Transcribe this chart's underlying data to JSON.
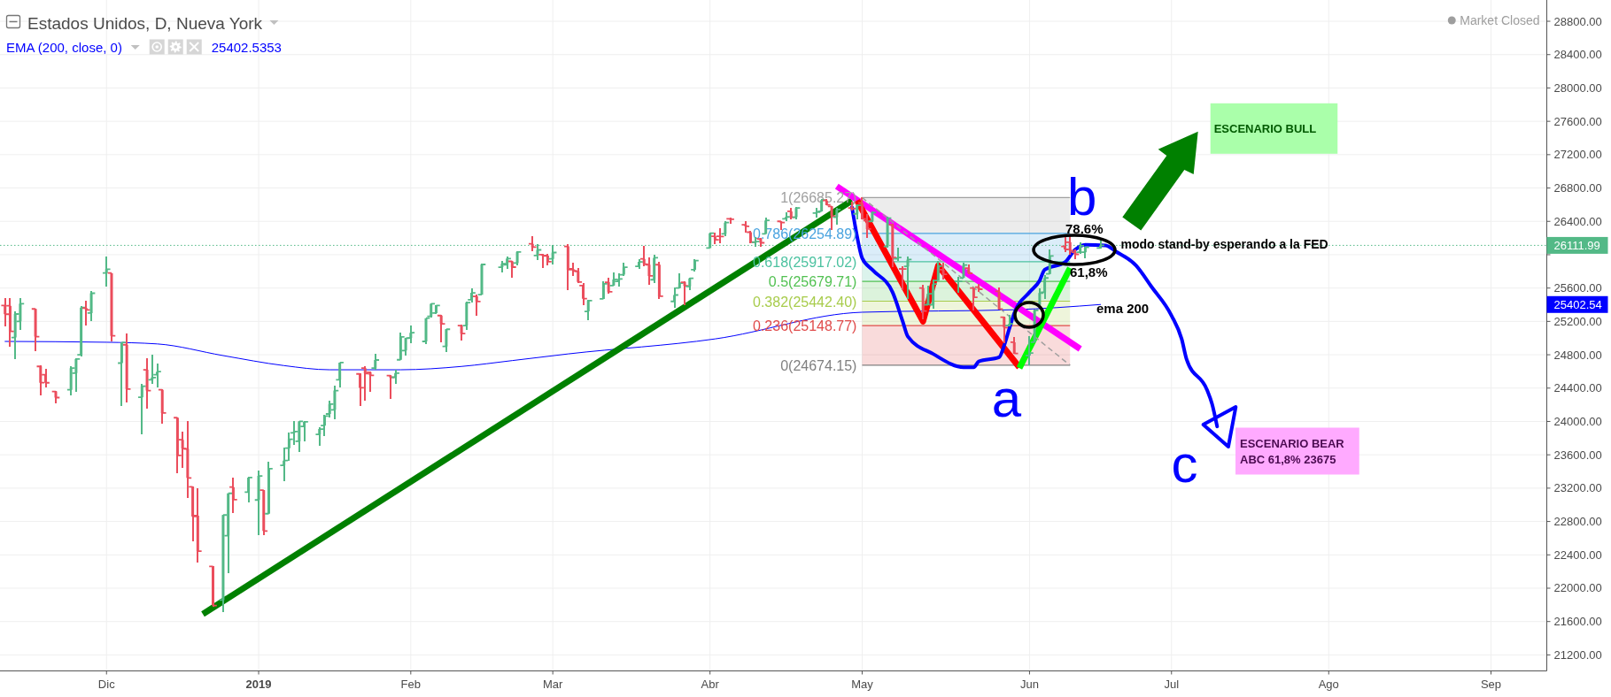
{
  "chart_data": {
    "type": "candlestick",
    "title": "Estados Unidos, D, Nueva York",
    "x": [
      "2018-11-13",
      "2018-11-14",
      "2018-11-15",
      "2018-11-16",
      "2018-11-19",
      "2018-11-20",
      "2018-11-21",
      "2018-11-23",
      "2018-11-26",
      "2018-11-27",
      "2018-11-28",
      "2018-11-29",
      "2018-11-30",
      "2018-12-03",
      "2018-12-04",
      "2018-12-06",
      "2018-12-07",
      "2018-12-10",
      "2018-12-11",
      "2018-12-12",
      "2018-12-13",
      "2018-12-14",
      "2018-12-17",
      "2018-12-18",
      "2018-12-19",
      "2018-12-20",
      "2018-12-21",
      "2018-12-24",
      "2018-12-26",
      "2018-12-27",
      "2018-12-28",
      "2018-12-31",
      "2019-01-02",
      "2019-01-03",
      "2019-01-04",
      "2019-01-07",
      "2019-01-08",
      "2019-01-09",
      "2019-01-10",
      "2019-01-11",
      "2019-01-14",
      "2019-01-15",
      "2019-01-16",
      "2019-01-17",
      "2019-01-18",
      "2019-01-22",
      "2019-01-23",
      "2019-01-24",
      "2019-01-25",
      "2019-01-28",
      "2019-01-29",
      "2019-01-30",
      "2019-01-31",
      "2019-02-01",
      "2019-02-04",
      "2019-02-05",
      "2019-02-06",
      "2019-02-07",
      "2019-02-08",
      "2019-02-11",
      "2019-02-12",
      "2019-02-13",
      "2019-02-14",
      "2019-02-15",
      "2019-02-19",
      "2019-02-20",
      "2019-02-21",
      "2019-02-22",
      "2019-02-25",
      "2019-02-26",
      "2019-02-27",
      "2019-02-28",
      "2019-03-01",
      "2019-03-04",
      "2019-03-05",
      "2019-03-06",
      "2019-03-07",
      "2019-03-08",
      "2019-03-11",
      "2019-03-12",
      "2019-03-13",
      "2019-03-14",
      "2019-03-15",
      "2019-03-18",
      "2019-03-19",
      "2019-03-20",
      "2019-03-21",
      "2019-03-22",
      "2019-03-25",
      "2019-03-26",
      "2019-03-27",
      "2019-03-28",
      "2019-03-29",
      "2019-04-01",
      "2019-04-02",
      "2019-04-03",
      "2019-04-04",
      "2019-04-05",
      "2019-04-08",
      "2019-04-09",
      "2019-04-10",
      "2019-04-11",
      "2019-04-12",
      "2019-04-15",
      "2019-04-16",
      "2019-04-17",
      "2019-04-18",
      "2019-04-22",
      "2019-04-23",
      "2019-04-24",
      "2019-04-25",
      "2019-04-26",
      "2019-04-29",
      "2019-04-30",
      "2019-05-01",
      "2019-05-02",
      "2019-05-03",
      "2019-05-06",
      "2019-05-07",
      "2019-05-08",
      "2019-05-09",
      "2019-05-10",
      "2019-05-13",
      "2019-05-14",
      "2019-05-15",
      "2019-05-16",
      "2019-05-17",
      "2019-05-20",
      "2019-05-21",
      "2019-05-22",
      "2019-05-23",
      "2019-05-24",
      "2019-05-28",
      "2019-05-29",
      "2019-05-30",
      "2019-05-31",
      "2019-06-03",
      "2019-06-04",
      "2019-06-05",
      "2019-06-06",
      "2019-06-07",
      "2019-06-10",
      "2019-06-11",
      "2019-06-12",
      "2019-06-13",
      "2019-06-14",
      "2019-06-17"
    ],
    "ohlc": [
      [
        25390,
        25475,
        25140,
        25286
      ],
      [
        25388,
        25475,
        24894,
        25080
      ],
      [
        25007,
        25318,
        24750,
        25289
      ],
      [
        25200,
        25475,
        25093,
        25413
      ],
      [
        25350,
        25352,
        24839,
        25017
      ],
      [
        24660,
        24670,
        24308,
        24465
      ],
      [
        24560,
        24626,
        24405,
        24464
      ],
      [
        24360,
        24363,
        24214,
        24286
      ],
      [
        24380,
        24660,
        24308,
        24640
      ],
      [
        24580,
        24760,
        24350,
        24748
      ],
      [
        24800,
        25380,
        24779,
        25366
      ],
      [
        25360,
        25446,
        25148,
        25338
      ],
      [
        25300,
        25560,
        25199,
        25538
      ],
      [
        25780,
        25980,
        25616,
        25826
      ],
      [
        25780,
        25780,
        24957,
        25027
      ],
      [
        24700,
        24950,
        24185,
        24947
      ],
      [
        24920,
        25055,
        24223,
        24389
      ],
      [
        24290,
        24450,
        23850,
        24423
      ],
      [
        24620,
        24754,
        24150,
        24370
      ],
      [
        24500,
        24796,
        24448,
        24527
      ],
      [
        24560,
        24694,
        24405,
        24597
      ],
      [
        24380,
        24384,
        23968,
        24101
      ],
      [
        24045,
        24045,
        23374,
        23593
      ],
      [
        23780,
        23883,
        23442,
        23675
      ],
      [
        23670,
        24010,
        23081,
        23323
      ],
      [
        23217,
        23217,
        22558,
        22860
      ],
      [
        22870,
        23195,
        22312,
        22445
      ],
      [
        22261,
        22261,
        21780,
        21792
      ],
      [
        21857,
        22878,
        21712,
        22878
      ],
      [
        22630,
        23138,
        22185,
        23138
      ],
      [
        23213,
        23322,
        22898,
        23062
      ],
      [
        23153,
        23333,
        23034,
        23327
      ],
      [
        23058,
        23413,
        22638,
        23346
      ],
      [
        23176,
        23176,
        22638,
        22686
      ],
      [
        22894,
        23518,
        22894,
        23433
      ],
      [
        23474,
        23687,
        23287,
        23531
      ],
      [
        23680,
        23865,
        23529,
        23787
      ],
      [
        23864,
        24001,
        23720,
        23879
      ],
      [
        23762,
        24002,
        23637,
        24001
      ],
      [
        23940,
        24005,
        23760,
        23996
      ],
      [
        23845,
        23936,
        23712,
        23909
      ],
      [
        23950,
        24080,
        23820,
        24065
      ],
      [
        24090,
        24250,
        24050,
        24207
      ],
      [
        24140,
        24430,
        24030,
        24370
      ],
      [
        24500,
        24710,
        24410,
        24706
      ],
      [
        24570,
        24580,
        24190,
        24404
      ],
      [
        24640,
        24660,
        24244,
        24575
      ],
      [
        24590,
        24596,
        24350,
        24553
      ],
      [
        24640,
        24810,
        24620,
        24737
      ],
      [
        24550,
        24554,
        24265,
        24528
      ],
      [
        24530,
        24618,
        24448,
        24580
      ],
      [
        24740,
        25064,
        24732,
        25014
      ],
      [
        24850,
        25000,
        24788,
        24999
      ],
      [
        25000,
        25149,
        24936,
        25064
      ],
      [
        24960,
        25240,
        24923,
        25239
      ],
      [
        25260,
        25420,
        25246,
        25412
      ],
      [
        25300,
        25391,
        25284,
        25390
      ],
      [
        25270,
        25276,
        24945,
        25170
      ],
      [
        24900,
        25110,
        24830,
        25106
      ],
      [
        25150,
        25157,
        24966,
        25053
      ],
      [
        25150,
        25440,
        25098,
        25426
      ],
      [
        25460,
        25594,
        25425,
        25543
      ],
      [
        25500,
        25518,
        25263,
        25439
      ],
      [
        25520,
        25890,
        25518,
        25883
      ],
      [
        25850,
        25921,
        25785,
        25891
      ],
      [
        25880,
        25980,
        25828,
        25954
      ],
      [
        25920,
        25921,
        25722,
        25851
      ],
      [
        25900,
        26040,
        25870,
        26032
      ],
      [
        26130,
        26219,
        26040,
        26092
      ],
      [
        25990,
        26125,
        25934,
        26058
      ],
      [
        26000,
        26006,
        25836,
        25985
      ],
      [
        25990,
        26006,
        25870,
        25916
      ],
      [
        25950,
        26117,
        25879,
        26026
      ],
      [
        26100,
        26125,
        25573,
        25820
      ],
      [
        25830,
        25900,
        25750,
        25807
      ],
      [
        25800,
        25840,
        25660,
        25673
      ],
      [
        25630,
        25660,
        25390,
        25473
      ],
      [
        25320,
        25460,
        25210,
        25450
      ],
      [
        25470,
        25680,
        25470,
        25651
      ],
      [
        25670,
        25720,
        25530,
        25555
      ],
      [
        25630,
        25790,
        25630,
        25703
      ],
      [
        25680,
        25780,
        25620,
        25710
      ],
      [
        25760,
        25900,
        25750,
        25849
      ],
      [
        25860,
        25950,
        25830,
        25914
      ],
      [
        25950,
        26110,
        25860,
        25887
      ],
      [
        25880,
        25970,
        25640,
        25746
      ],
      [
        25700,
        26000,
        25660,
        25963
      ],
      [
        25880,
        25920,
        25470,
        25502
      ],
      [
        25440,
        25610,
        25360,
        25517
      ],
      [
        25600,
        25780,
        25600,
        25658
      ],
      [
        25670,
        25680,
        25400,
        25626
      ],
      [
        25620,
        25720,
        25570,
        25717
      ],
      [
        25820,
        25950,
        25800,
        25929
      ],
      [
        26080,
        26260,
        26080,
        26258
      ],
      [
        26220,
        26260,
        26130,
        26179
      ],
      [
        26220,
        26320,
        26140,
        26218
      ],
      [
        26250,
        26400,
        26220,
        26385
      ],
      [
        26430,
        26450,
        26370,
        26425
      ],
      [
        26360,
        26400,
        26260,
        26341
      ],
      [
        26270,
        26290,
        26140,
        26151
      ],
      [
        26150,
        26210,
        26100,
        26157
      ],
      [
        26190,
        26200,
        26100,
        26143
      ],
      [
        26250,
        26450,
        26250,
        26412
      ],
      [
        26400,
        26400,
        26300,
        26385
      ],
      [
        26430,
        26510,
        26400,
        26453
      ],
      [
        26520,
        26560,
        26420,
        26450
      ],
      [
        26450,
        26570,
        26420,
        26560
      ],
      [
        26500,
        26560,
        26450,
        26511
      ],
      [
        26520,
        26670,
        26520,
        26656
      ],
      [
        26650,
        26670,
        26590,
        26597
      ],
      [
        26580,
        26580,
        26300,
        26462
      ],
      [
        26450,
        26560,
        26360,
        26543
      ],
      [
        26560,
        26640,
        26530,
        26554
      ],
      [
        26490,
        26600,
        26420,
        26593
      ],
      [
        26620,
        26685.27,
        26420,
        26430
      ],
      [
        26410,
        26490,
        26200,
        26308
      ],
      [
        26400,
        26520,
        26390,
        26505
      ],
      [
        26100,
        26460,
        26080,
        26438
      ],
      [
        26360,
        26370,
        25850,
        25965
      ],
      [
        25950,
        26080,
        25930,
        25967
      ],
      [
        25830,
        25860,
        25570,
        25828
      ],
      [
        25860,
        25980,
        25470,
        25942
      ],
      [
        25600,
        25640,
        25220,
        25325
      ],
      [
        25400,
        25630,
        25390,
        25532
      ],
      [
        25400,
        25700,
        25350,
        25648
      ],
      [
        25690,
        25930,
        25690,
        25863
      ],
      [
        25820,
        25900,
        25700,
        25764
      ],
      [
        25680,
        25730,
        25540,
        25680
      ],
      [
        25720,
        25900,
        25720,
        25877
      ],
      [
        25840,
        25880,
        25770,
        25777
      ],
      [
        25600,
        25600,
        25330,
        25490
      ],
      [
        25610,
        25650,
        25550,
        25586
      ],
      [
        25560,
        25610,
        25340,
        25348
      ],
      [
        25250,
        25260,
        24940,
        25126
      ],
      [
        25150,
        25280,
        25140,
        25170
      ],
      [
        24950,
        25010,
        24810,
        24815
      ],
      [
        24790,
        25020,
        24674.15,
        24820
      ],
      [
        24950,
        25340,
        24950,
        25332
      ],
      [
        25400,
        25600,
        25400,
        25540
      ],
      [
        25550,
        25760,
        25470,
        25721
      ],
      [
        25770,
        26060,
        25770,
        25984
      ],
      [
        26100,
        26220,
        26030,
        26063
      ],
      [
        26150,
        26230,
        26000,
        26049
      ],
      [
        26030,
        26060,
        25950,
        26005
      ],
      [
        26030,
        26150,
        26010,
        26107
      ],
      [
        26030,
        26100,
        25960,
        26090
      ],
      [
        26080,
        26180,
        26070,
        26111.99
      ]
    ],
    "series": [
      {
        "name": "EMA (200, close, 0)",
        "type": "line",
        "color": "#0000ff",
        "x": [
          "2018-11-13",
          "2018-12-03",
          "2018-12-13",
          "2018-12-26",
          "2019-01-07",
          "2019-01-16",
          "2019-01-30",
          "2019-02-11",
          "2019-02-21",
          "2019-03-04",
          "2019-04-02",
          "2019-05-01",
          "2019-05-31",
          "2019-06-17"
        ],
        "values": [
          24960,
          24950,
          24930,
          24790,
          24670,
          24620,
          24620,
          24660,
          24730,
          24810,
          24990,
          25310,
          25340,
          25402.54
        ]
      },
      {
        "type": "line",
        "color": "#008000",
        "x": [
          "2018-12-22",
          "2019-04-29"
        ],
        "values": [
          21690,
          26650
        ]
      },
      {
        "type": "line",
        "color": "#ff00ff",
        "x": [
          "2019-04-26",
          "2019-06-13"
        ],
        "values": [
          26820,
          24870
        ]
      },
      {
        "type": "line",
        "color": "#ff0000",
        "x": [
          "2019-04-30",
          "2019-05-13",
          "2019-05-16",
          "2019-06-01"
        ],
        "values": [
          26650,
          25200,
          25870,
          24650
        ]
      },
      {
        "type": "line",
        "color": "#00ff00",
        "x": [
          "2019-06-01",
          "2019-06-11"
        ],
        "values": [
          24640,
          25840
        ]
      },
      {
        "type": "line",
        "color": "#0000ff",
        "x": [
          "2019-04-29",
          "2019-04-30",
          "2019-05-01",
          "2019-05-03",
          "2019-05-07",
          "2019-05-09",
          "2019-05-10",
          "2019-05-15",
          "2019-05-21",
          "2019-05-23",
          "2019-05-24",
          "2019-05-28",
          "2019-05-29",
          "2019-05-30",
          "2019-05-31",
          "2019-06-03",
          "2019-06-05",
          "2019-06-06",
          "2019-06-10",
          "2019-06-12",
          "2019-06-14",
          "2019-06-18",
          "2019-06-20",
          "2019-06-24",
          "2019-06-27",
          "2019-07-01",
          "2019-07-03",
          "2019-07-04",
          "2019-07-08",
          "2019-07-09",
          "2019-07-10"
        ],
        "values": [
          26570,
          26220,
          25960,
          25820,
          25550,
          25200,
          25020,
          24810,
          24650,
          24650,
          24720,
          24770,
          24910,
          25110,
          25300,
          25550,
          25690,
          25820,
          25910,
          26060,
          26120,
          26110,
          26040,
          25870,
          25620,
          25270,
          24990,
          24740,
          24380,
          24210,
          23940
        ]
      },
      {
        "type": "line",
        "color": "#9e9e9e",
        "line_style": "dashed",
        "x": [
          "2019-05-01",
          "2019-06-11"
        ],
        "values": [
          26685.27,
          24674.15
        ]
      },
      {
        "name": "1(26685.27)",
        "type": "step",
        "color": "#a0a0a0",
        "x": [
          "2019-05-01",
          "2019-06-11"
        ],
        "values": [
          26685.27,
          26685.27
        ],
        "lower": [
          26254.89,
          26254.89
        ],
        "upper": [
          26685.27,
          26685.27
        ]
      },
      {
        "name": "0.786(26254.89)",
        "type": "step",
        "color": "#4aa3df",
        "x": [
          "2019-05-01",
          "2019-06-11"
        ],
        "values": [
          26254.89,
          26254.89
        ],
        "lower": [
          25917.02,
          25917.02
        ],
        "upper": [
          26254.89,
          26254.89
        ]
      },
      {
        "name": "0.618(25917.02)",
        "type": "step",
        "color": "#4cc2a0",
        "x": [
          "2019-05-01",
          "2019-06-11"
        ],
        "values": [
          25917.02,
          25917.02
        ],
        "lower": [
          25679.71,
          25679.71
        ],
        "upper": [
          25917.02,
          25917.02
        ]
      },
      {
        "name": "0.5(25679.71)",
        "type": "step",
        "color": "#52c152",
        "x": [
          "2019-05-01",
          "2019-06-11"
        ],
        "values": [
          25679.71,
          25679.71
        ],
        "lower": [
          25442.4,
          25442.4
        ],
        "upper": [
          25679.71,
          25679.71
        ]
      },
      {
        "name": "0.382(25442.40)",
        "type": "step",
        "color": "#a8cc4c",
        "x": [
          "2019-05-01",
          "2019-06-11"
        ],
        "values": [
          25442.4,
          25442.4
        ],
        "lower": [
          25148.77,
          25148.77
        ],
        "upper": [
          25442.4,
          25442.4
        ]
      },
      {
        "name": "0.236(25148.77)",
        "type": "step",
        "color": "#e04a4a",
        "x": [
          "2019-05-01",
          "2019-06-11"
        ],
        "values": [
          25148.77,
          25148.77
        ],
        "lower": [
          24674.15,
          24674.15
        ],
        "upper": [
          25148.77,
          25148.77
        ]
      },
      {
        "name": "0(24674.15)",
        "type": "step",
        "color": "#808080",
        "x": [
          "2019-05-01",
          "2019-06-11"
        ],
        "values": [
          24674.15,
          24674.15
        ]
      }
    ],
    "xlim": [
      "2018-11-12",
      "2019-09-13"
    ],
    "xticks": [
      {
        "value": "2018-12-03",
        "label": "Dic"
      },
      {
        "value": "2019-01-02",
        "label": "2019"
      },
      {
        "value": "2019-02-01",
        "label": "Feb"
      },
      {
        "value": "2019-03-01",
        "label": "Mar"
      },
      {
        "value": "2019-04-01",
        "label": "Abr"
      },
      {
        "value": "2019-05-01",
        "label": "May"
      },
      {
        "value": "2019-06-03",
        "label": "Jun"
      },
      {
        "value": "2019-07-01",
        "label": "Jul"
      },
      {
        "value": "2019-08-01",
        "label": "Ago"
      },
      {
        "value": "2019-09-02",
        "label": "Sep"
      }
    ],
    "ylim": [
      21008,
      29055
    ],
    "yticks": [
      {
        "value": 21200,
        "label": "21200.00"
      },
      {
        "value": 21600,
        "label": "21600.00"
      },
      {
        "value": 22000,
        "label": "22000.00"
      },
      {
        "value": 22400,
        "label": "22400.00"
      },
      {
        "value": 22800,
        "label": "22800.00"
      },
      {
        "value": 23200,
        "label": "23200.00"
      },
      {
        "value": 23600,
        "label": "23600.00"
      },
      {
        "value": 24000,
        "label": "24000.00"
      },
      {
        "value": 24400,
        "label": "24400.00"
      },
      {
        "value": 24800,
        "label": "24800.00"
      },
      {
        "value": 25200,
        "label": "25200.00"
      },
      {
        "value": 25600,
        "label": "25600.00"
      },
      {
        "value": 26000,
        "label": null
      },
      {
        "value": 26400,
        "label": "26400.00"
      },
      {
        "value": 26800,
        "label": "26800.00"
      },
      {
        "value": 27200,
        "label": "27200.00"
      },
      {
        "value": 27600,
        "label": "27600.00"
      },
      {
        "value": 28000,
        "label": "28000.00"
      },
      {
        "value": 28400,
        "label": "28400.00"
      },
      {
        "value": 28800,
        "label": "28800.00"
      }
    ],
    "grid": true,
    "legend": "top left",
    "ref_lines": [
      {
        "axis": "y",
        "value": 26111.99,
        "label": "26111.99",
        "color": "#53b987",
        "line_style": "dotted"
      }
    ],
    "annotations": [
      "Market Closed",
      "25402.5353",
      "25402.54",
      "b",
      "78.6%",
      {
        "text": "modo stand-by esperando a la FED",
        "x": "2019-06-21",
        "y": 26130
      },
      "61,8%",
      "ema 200",
      "a",
      "c",
      "ESCENARIO BULL",
      "ESCENARIO BEAR\nABC 61,8% 23675"
    ]
  }
}
